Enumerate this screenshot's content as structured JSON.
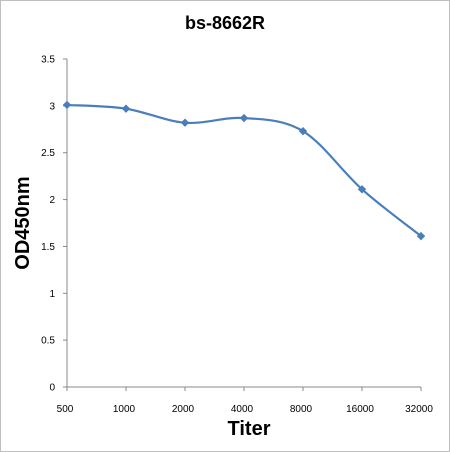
{
  "chart_data": {
    "type": "line",
    "title": "bs-8662R",
    "xlabel": "Titer",
    "ylabel": "OD450nm",
    "categories": [
      "500",
      "1000",
      "2000",
      "4000",
      "8000",
      "16000",
      "32000"
    ],
    "series": [
      {
        "values": [
          3.01,
          2.97,
          2.82,
          2.87,
          2.73,
          2.11,
          1.61
        ]
      }
    ],
    "ylim": [
      0,
      3.5
    ],
    "yticks": [
      "0",
      "0.5",
      "1",
      "1.5",
      "2",
      "2.5",
      "3",
      "3.5"
    ],
    "grid": false,
    "legend": "none",
    "line_color": "#4a7ebb",
    "marker": "diamond"
  }
}
